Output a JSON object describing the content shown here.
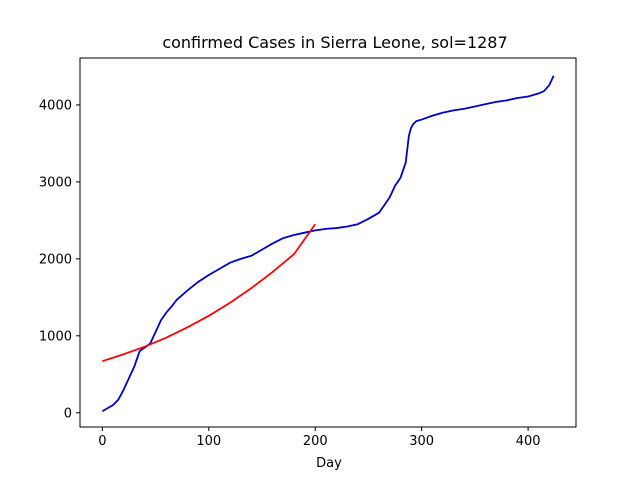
{
  "chart_data": {
    "type": "line",
    "title": "confirmed Cases in Sierra Leone, sol=1287",
    "xlabel": "Day",
    "ylabel": "",
    "xlim": [
      -21,
      445
    ],
    "ylim": [
      -185,
      4610
    ],
    "xticks": [
      0,
      100,
      200,
      300,
      400
    ],
    "yticks": [
      0,
      1000,
      2000,
      3000,
      4000
    ],
    "grid": false,
    "series": [
      {
        "color": "#0000cc",
        "x": [
          0,
          5,
          10,
          15,
          20,
          25,
          30,
          35,
          40,
          45,
          50,
          55,
          60,
          65,
          70,
          75,
          80,
          90,
          100,
          110,
          120,
          130,
          140,
          150,
          160,
          170,
          180,
          190,
          200,
          210,
          220,
          230,
          240,
          250,
          260,
          265,
          270,
          275,
          280,
          285,
          288,
          290,
          292,
          295,
          300,
          310,
          320,
          330,
          340,
          350,
          360,
          370,
          380,
          390,
          400,
          410,
          415,
          420,
          424
        ],
        "y": [
          20,
          60,
          100,
          170,
          300,
          450,
          600,
          800,
          850,
          900,
          1050,
          1200,
          1300,
          1380,
          1470,
          1530,
          1590,
          1700,
          1790,
          1870,
          1950,
          2000,
          2040,
          2120,
          2200,
          2270,
          2310,
          2340,
          2370,
          2390,
          2400,
          2420,
          2450,
          2520,
          2600,
          2700,
          2800,
          2950,
          3050,
          3250,
          3600,
          3700,
          3750,
          3790,
          3810,
          3860,
          3900,
          3930,
          3950,
          3980,
          4010,
          4040,
          4060,
          4090,
          4110,
          4150,
          4180,
          4260,
          4380
        ]
      },
      {
        "color": "#ff0000",
        "x": [
          0,
          20,
          40,
          60,
          80,
          100,
          120,
          140,
          160,
          180,
          200
        ],
        "y": [
          670,
          760,
          860,
          975,
          1110,
          1260,
          1430,
          1620,
          1830,
          2060,
          2450
        ]
      }
    ]
  }
}
